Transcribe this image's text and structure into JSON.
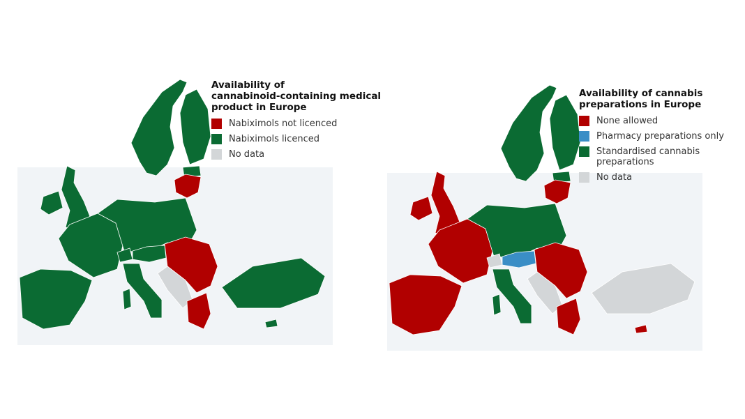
{
  "colors": {
    "red": "#b10000",
    "green": "#0b6b33",
    "blue": "#3a8ec6",
    "gray": "#d3d6d8",
    "sea": "#f1f4f7",
    "border": "#ffffff"
  },
  "maps": [
    {
      "legend": {
        "title_lines": [
          "Availability of",
          "cannabinoid-containing medical",
          "product in Europe"
        ],
        "items": [
          {
            "label": "Nabiximols not licenced",
            "color": "#b10000"
          },
          {
            "label": "Nabiximols licenced",
            "color": "#0b6b33"
          },
          {
            "label": "No data",
            "color": "#d3d6d8"
          }
        ]
      },
      "regions": {
        "scand": "green",
        "fin": "green",
        "est": "green",
        "baltic": "red",
        "uk": "green",
        "ire": "green",
        "iberia": "green",
        "france": "green",
        "central": "green",
        "swiss": "green",
        "austria": "green",
        "east": "red",
        "balkans": "gray",
        "greece": "red",
        "italy": "green",
        "islands": "green",
        "turkey": "green",
        "cyprus": "green"
      }
    },
    {
      "legend": {
        "title_lines": [
          "Availability of cannabis",
          "preparations in Europe"
        ],
        "items": [
          {
            "label": "None allowed",
            "color": "#b10000"
          },
          {
            "label": "Pharmacy preparations only",
            "color": "#3a8ec6"
          },
          {
            "label": "Standardised cannabis preparations",
            "color": "#0b6b33"
          },
          {
            "label": "No data",
            "color": "#d3d6d8"
          }
        ]
      },
      "regions": {
        "scand": "green",
        "fin": "green",
        "est": "green",
        "baltic": "red",
        "uk": "red",
        "ire": "red",
        "iberia": "red",
        "france": "red",
        "central": "green",
        "swiss": "gray",
        "austria": "blue",
        "east": "red",
        "balkans": "gray",
        "greece": "red",
        "italy": "green",
        "islands": "green",
        "turkey": "gray",
        "cyprus": "red"
      }
    }
  ]
}
